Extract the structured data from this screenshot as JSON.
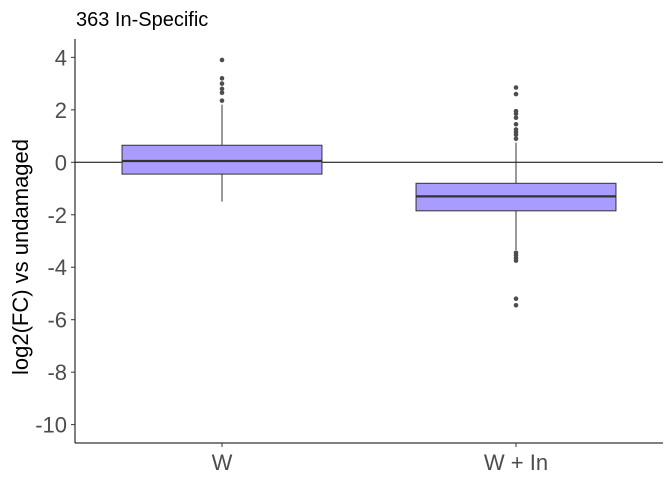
{
  "chart_data": {
    "type": "box",
    "title": "363 In-Specific",
    "xlabel": "",
    "ylabel": "log2(FC) vs undamaged",
    "categories": [
      "W",
      "W + In"
    ],
    "ylim": [
      -10.7,
      4.7
    ],
    "yticks": [
      4,
      2,
      0,
      -2,
      -4,
      -6,
      -8,
      -10
    ],
    "yticks_labels": [
      "4",
      "2",
      "0",
      "-2",
      "-4",
      "-6",
      "-8",
      "-10"
    ],
    "reference_line": 0,
    "grid": false,
    "box_color": "#a99cff",
    "boxes": [
      {
        "category": "W",
        "min": -1.5,
        "q1": -0.45,
        "median": 0.05,
        "q3": 0.65,
        "max": 2.2,
        "outliers": [
          2.35,
          2.65,
          2.8,
          3.0,
          3.2,
          3.9
        ]
      },
      {
        "category": "W + In",
        "min": -3.35,
        "q1": -1.85,
        "median": -1.3,
        "q3": -0.8,
        "max": 0.75,
        "outliers": [
          0.9,
          1.05,
          1.15,
          1.25,
          1.45,
          1.7,
          1.85,
          1.95,
          2.6,
          2.85,
          -3.45,
          -3.55,
          -3.65,
          -3.75,
          -5.2,
          -5.45
        ]
      }
    ]
  }
}
